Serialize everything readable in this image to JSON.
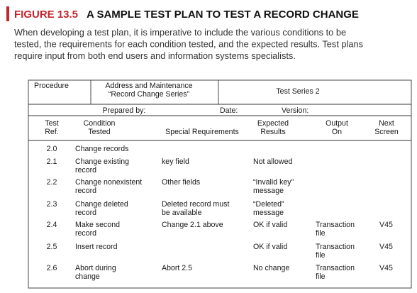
{
  "figure": {
    "label": "FIGURE 13.5",
    "title": "A SAMPLE TEST PLAN TO TEST A RECORD CHANGE",
    "caption": [
      "When developing a test plan, it is imperative to include the various conditions to be",
      "tested, the requirements for each condition tested, and the expected results. Test plans",
      "require input from both end users and information systems specialists."
    ]
  },
  "table": {
    "procedure_label": "Procedure",
    "procedure": [
      "Address and Maintenance",
      "“Record Change Series”"
    ],
    "series": "Test Series 2",
    "prepared_by": "Prepared by:",
    "date": "Date:",
    "version": "Version:",
    "columns": [
      [
        "Test",
        "Ref."
      ],
      [
        "Condition",
        "Tested"
      ],
      [
        "Special Requirements"
      ],
      [
        "Expected",
        "Results"
      ],
      [
        "Output",
        "On"
      ],
      [
        "Next",
        "Screen"
      ]
    ],
    "rows": [
      [
        [
          "2.0"
        ],
        [
          "Change records"
        ],
        null,
        null,
        null,
        null
      ],
      [
        [
          "2.1"
        ],
        [
          "Change existing",
          "record"
        ],
        [
          "key field"
        ],
        [
          "Not allowed"
        ],
        null,
        null
      ],
      [
        [
          "2.2"
        ],
        [
          "Change nonexistent",
          "record"
        ],
        [
          "Other fields"
        ],
        [
          "“Invalid key”",
          "message"
        ],
        null,
        null
      ],
      [
        [
          "2.3"
        ],
        [
          "Change deleted",
          "record"
        ],
        [
          "Deleted record must",
          "be available"
        ],
        [
          "“Deleted”",
          "message"
        ],
        null,
        null
      ],
      [
        [
          "2.4"
        ],
        [
          "Make second",
          "record"
        ],
        [
          "Change 2.1 above"
        ],
        [
          "OK if valid"
        ],
        [
          "Transaction",
          "file"
        ],
        [
          "V45"
        ]
      ],
      [
        [
          "2.5"
        ],
        [
          "Insert record"
        ],
        null,
        [
          "OK if valid"
        ],
        [
          "Transaction",
          "file"
        ],
        [
          "V45"
        ]
      ],
      [
        [
          "2.6"
        ],
        [
          "Abort during",
          "change"
        ],
        [
          "Abort 2.5"
        ],
        [
          "No change"
        ],
        [
          "Transaction",
          "file"
        ],
        [
          "V45"
        ]
      ]
    ]
  }
}
